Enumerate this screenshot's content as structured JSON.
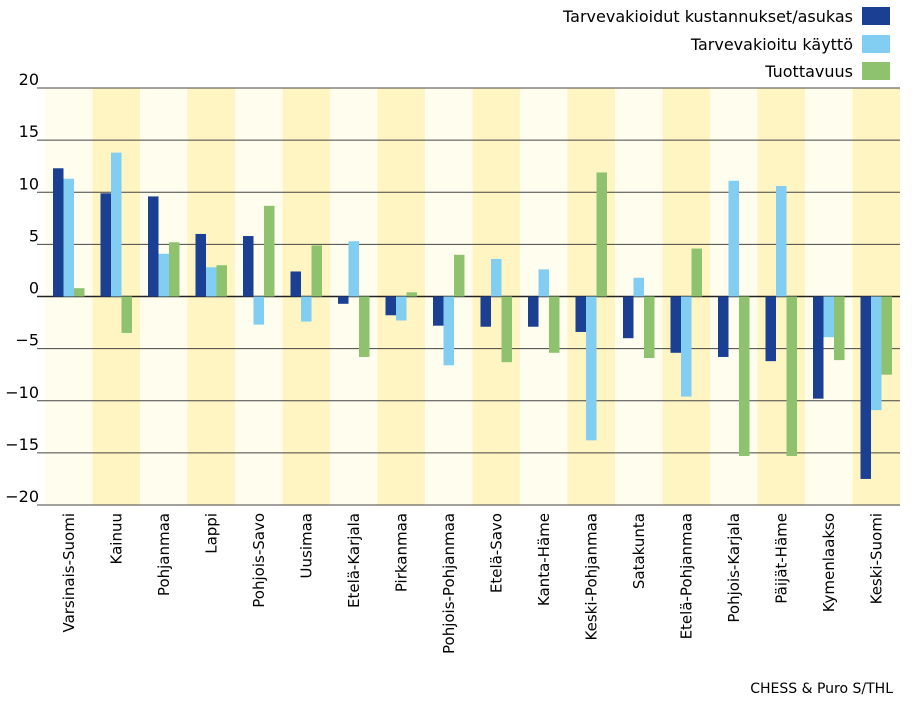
{
  "chart_data": {
    "type": "bar",
    "title": "",
    "xlabel": "",
    "ylabel": "",
    "ylim": [
      -20,
      20
    ],
    "yticks": [
      20,
      15,
      10,
      5,
      0,
      -5,
      -10,
      -15,
      -20
    ],
    "yticks_display": [
      "20",
      "15",
      "10",
      "5",
      "0",
      "−5",
      "−10",
      "−15",
      "−20"
    ],
    "grid": true,
    "legend_position": "top-right",
    "categories": [
      "Varsinais-Suomi",
      "Kainuu",
      "Pohjanmaa",
      "Lappi",
      "Pohjois-Savo",
      "Uusimaa",
      "Etelä-Karjala",
      "Pirkanmaa",
      "Pohjois-Pohjanmaa",
      "Etelä-Savo",
      "Kanta-Häme",
      "Keski-Pohjanmaa",
      "Satakunta",
      "Etelä-Pohjanmaa",
      "Pohjois-Karjala",
      "Päijät-Häme",
      "Kymenlaakso",
      "Keski-Suomi"
    ],
    "series": [
      {
        "name": "Tarvevakioidut kustannukset/asukas",
        "color": "#1b3f93",
        "values": [
          12.3,
          9.9,
          9.6,
          6.0,
          5.8,
          2.4,
          -0.7,
          -1.8,
          -2.8,
          -2.9,
          -2.9,
          -3.4,
          -4.0,
          -5.4,
          -5.8,
          -6.2,
          -9.8,
          -17.5
        ]
      },
      {
        "name": "Tarvevakioitu käyttö",
        "color": "#82cdf2",
        "values": [
          11.3,
          13.8,
          4.1,
          2.8,
          -2.7,
          -2.4,
          5.3,
          -2.3,
          -6.6,
          3.6,
          2.6,
          -13.8,
          1.8,
          -9.6,
          11.1,
          10.6,
          -3.9,
          -10.9
        ]
      },
      {
        "name": "Tuottavuus",
        "color": "#8ec26f",
        "values": [
          0.8,
          -3.5,
          5.2,
          3.0,
          8.7,
          4.9,
          -5.8,
          0.4,
          4.0,
          -6.3,
          -5.4,
          11.9,
          -5.9,
          4.6,
          -15.3,
          -15.3,
          -6.1,
          -7.5
        ]
      }
    ],
    "band_colors": [
      "#fffdee",
      "#fff5c2"
    ],
    "source": "CHESS & Puro S/THL"
  }
}
